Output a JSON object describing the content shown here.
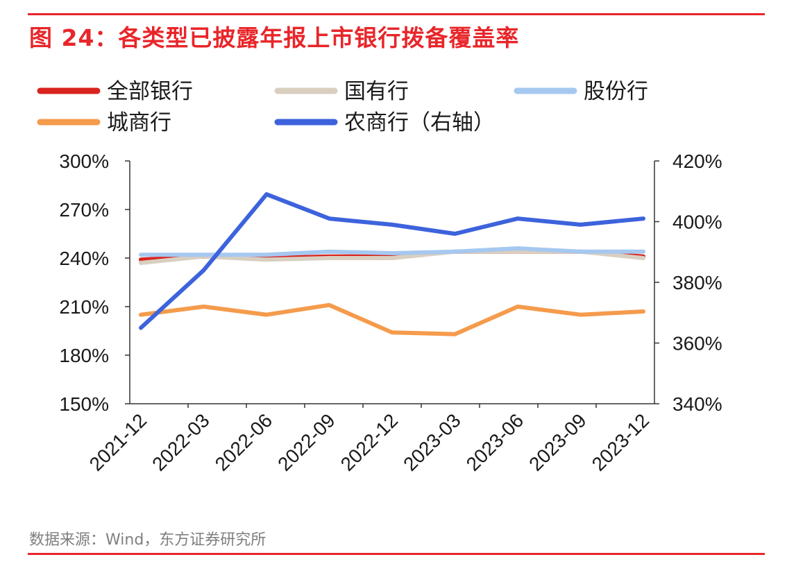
{
  "header": {
    "title": "图 24：各类型已披露年报上市银行拨备覆盖率"
  },
  "footer": {
    "source": "数据来源：Wind，东方证券研究所"
  },
  "colors": {
    "accent": "#e8262a",
    "axis": "#333333"
  },
  "chart_data": {
    "type": "line",
    "title": "各类型已披露年报上市银行拨备覆盖率",
    "categories": [
      "2021-12",
      "2022-03",
      "2022-06",
      "2022-09",
      "2022-12",
      "2023-03",
      "2023-06",
      "2023-09",
      "2023-12"
    ],
    "y_left": {
      "ylim": [
        150,
        300
      ],
      "ticks": [
        300,
        270,
        240,
        210,
        180,
        150
      ],
      "tick_labels": [
        "300%",
        "270%",
        "240%",
        "210%",
        "180%",
        "150%"
      ]
    },
    "y_right": {
      "ylim": [
        340,
        420
      ],
      "ticks": [
        420,
        400,
        380,
        360,
        340
      ],
      "tick_labels": [
        "420%",
        "400%",
        "380%",
        "360%",
        "340%"
      ]
    },
    "series": [
      {
        "name": "全部银行",
        "axis": "left",
        "color": "#d9231e",
        "values": [
          239,
          241,
          240,
          241,
          241,
          244,
          244,
          244,
          241
        ]
      },
      {
        "name": "国有行",
        "axis": "left",
        "color": "#d9cfc0",
        "values": [
          237,
          241,
          239,
          240,
          240,
          244,
          244,
          244,
          240
        ]
      },
      {
        "name": "股份行",
        "axis": "left",
        "color": "#a6c8f0",
        "values": [
          242,
          242,
          242,
          244,
          243,
          244,
          246,
          244,
          244
        ]
      },
      {
        "name": "城商行",
        "axis": "left",
        "color": "#f59b4c",
        "values": [
          205,
          210,
          205,
          211,
          194,
          193,
          210,
          205,
          207
        ]
      },
      {
        "name": "农商行（右轴）",
        "axis": "right",
        "color": "#3d63dc",
        "values": [
          365,
          384,
          409,
          401,
          399,
          396,
          401,
          399,
          401
        ]
      }
    ],
    "legend": {
      "position": "top",
      "columns": 3
    }
  }
}
